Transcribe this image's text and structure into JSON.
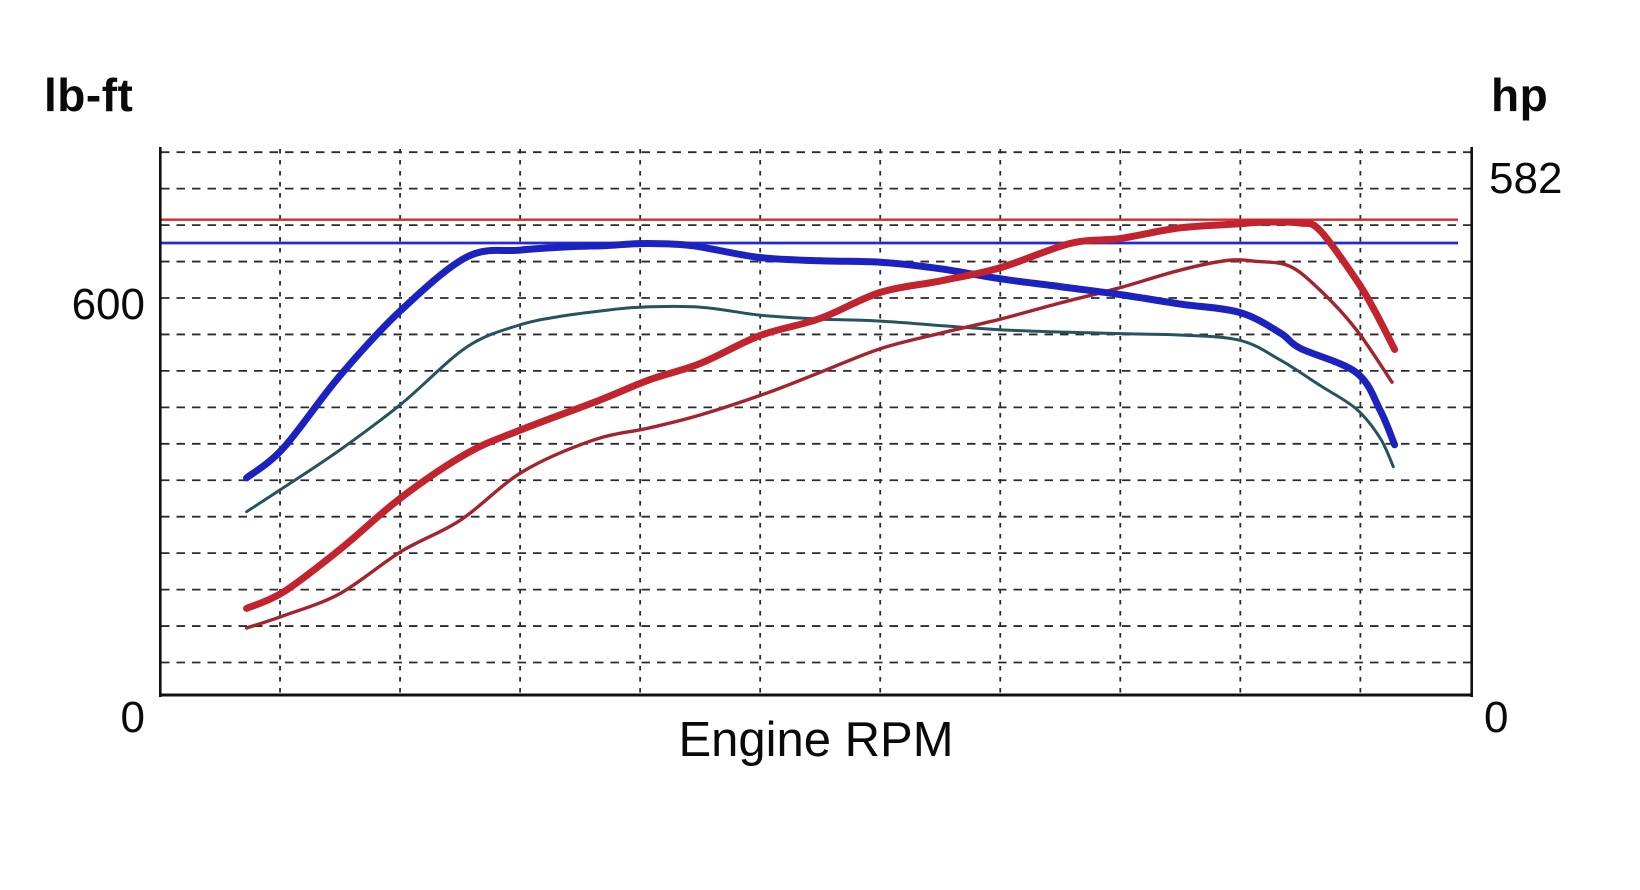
{
  "page": {
    "background": "#ffffff",
    "text_color": "#0a0a0a"
  },
  "labels": {
    "left_axis_unit": "lb-ft",
    "right_axis_unit": "hp",
    "left_tick_top": "600",
    "left_tick_bottom": "0",
    "right_tick_top": "582",
    "right_tick_bottom": "0",
    "x_axis_label": "Engine RPM"
  },
  "chart_data": {
    "type": "line",
    "title": "",
    "xlabel": "Engine RPM",
    "x_unit": "percent of x-axis (RPM tick values not labeled on chart)",
    "left_axis": {
      "label": "lb-ft",
      "shown_ticks": [
        600,
        0
      ],
      "range": [
        0,
        828
      ]
    },
    "right_axis": {
      "label": "hp",
      "shown_ticks": [
        582,
        0
      ],
      "range": [
        0,
        671
      ]
    },
    "grid": {
      "style": "dashed",
      "color": "#2b2b2b",
      "vertical_lines": 10,
      "horizontal_lines": 15
    },
    "border_color": "#111111",
    "legend": "none",
    "peak_lines": [
      {
        "name": "peak-hp-line",
        "axis": "right",
        "value": 582,
        "color": "#d92727",
        "width": 2.4
      },
      {
        "name": "peak-torque-line",
        "axis": "left",
        "value": 683,
        "color": "#2328dc",
        "width": 2.8
      }
    ],
    "series": [
      {
        "name": "torque-baseline",
        "axis": "left",
        "color": "#255460",
        "width": 3,
        "points": [
          [
            6.6,
            277
          ],
          [
            9.4,
            313
          ],
          [
            13.7,
            370
          ],
          [
            18.4,
            440
          ],
          [
            23.4,
            526
          ],
          [
            27.4,
            559
          ],
          [
            30.5,
            572
          ],
          [
            33.5,
            580
          ],
          [
            36.6,
            586
          ],
          [
            41.2,
            586
          ],
          [
            45.7,
            574
          ],
          [
            50.3,
            568
          ],
          [
            54.9,
            565
          ],
          [
            64,
            552
          ],
          [
            73.2,
            546
          ],
          [
            77.7,
            544
          ],
          [
            82.3,
            536
          ],
          [
            85.4,
            506
          ],
          [
            88.4,
            468
          ],
          [
            91.2,
            432
          ],
          [
            93,
            388
          ],
          [
            94,
            345
          ]
        ]
      },
      {
        "name": "hp-baseline",
        "axis": "right",
        "color": "#a3242f",
        "width": 3.4,
        "points": [
          [
            6.6,
            82
          ],
          [
            9.4,
            97
          ],
          [
            13.7,
            124
          ],
          [
            18.4,
            176
          ],
          [
            22.9,
            214
          ],
          [
            27.6,
            273
          ],
          [
            33,
            312
          ],
          [
            37.3,
            327
          ],
          [
            41.2,
            343
          ],
          [
            46.3,
            370
          ],
          [
            50.3,
            395
          ],
          [
            54.9,
            424
          ],
          [
            59.5,
            443
          ],
          [
            64,
            460
          ],
          [
            68.6,
            480
          ],
          [
            73,
            498
          ],
          [
            77.7,
            520
          ],
          [
            81.3,
            532
          ],
          [
            83.5,
            531
          ],
          [
            86.1,
            525
          ],
          [
            88.4,
            496
          ],
          [
            91.2,
            447
          ],
          [
            93.9,
            383
          ]
        ]
      },
      {
        "name": "torque-main",
        "axis": "left",
        "color": "#1c22c0",
        "width": 7,
        "points": [
          [
            6.6,
            328
          ],
          [
            9.4,
            373
          ],
          [
            13.7,
            482
          ],
          [
            18.3,
            580
          ],
          [
            23.4,
            662
          ],
          [
            27.4,
            672
          ],
          [
            31,
            677
          ],
          [
            34,
            679
          ],
          [
            36.6,
            682
          ],
          [
            39.3,
            681
          ],
          [
            41.2,
            677
          ],
          [
            45.7,
            661
          ],
          [
            50.3,
            656
          ],
          [
            54.9,
            654
          ],
          [
            59.5,
            644
          ],
          [
            64,
            629
          ],
          [
            68.6,
            617
          ],
          [
            73.2,
            605
          ],
          [
            77.7,
            591
          ],
          [
            82.3,
            578
          ],
          [
            85.4,
            547
          ],
          [
            86.9,
            524
          ],
          [
            91.2,
            487
          ],
          [
            93,
            430
          ],
          [
            94.1,
            378
          ]
        ]
      },
      {
        "name": "hp-main",
        "axis": "right",
        "color": "#c3232c",
        "width": 7,
        "points": [
          [
            6.6,
            106
          ],
          [
            9.4,
            126
          ],
          [
            13.7,
            178
          ],
          [
            18.4,
            242
          ],
          [
            23.4,
            296
          ],
          [
            27.4,
            324
          ],
          [
            33.5,
            361
          ],
          [
            37.3,
            386
          ],
          [
            41.2,
            406
          ],
          [
            45.7,
            440
          ],
          [
            50.3,
            461
          ],
          [
            54.9,
            493
          ],
          [
            59.5,
            507
          ],
          [
            64,
            523
          ],
          [
            69.4,
            553
          ],
          [
            73.2,
            559
          ],
          [
            77.7,
            572
          ],
          [
            82.3,
            577
          ],
          [
            84.2,
            579
          ],
          [
            86.9,
            578
          ],
          [
            88.4,
            569
          ],
          [
            91.2,
            508
          ],
          [
            92.6,
            470
          ],
          [
            94.1,
            423
          ]
        ]
      }
    ]
  }
}
